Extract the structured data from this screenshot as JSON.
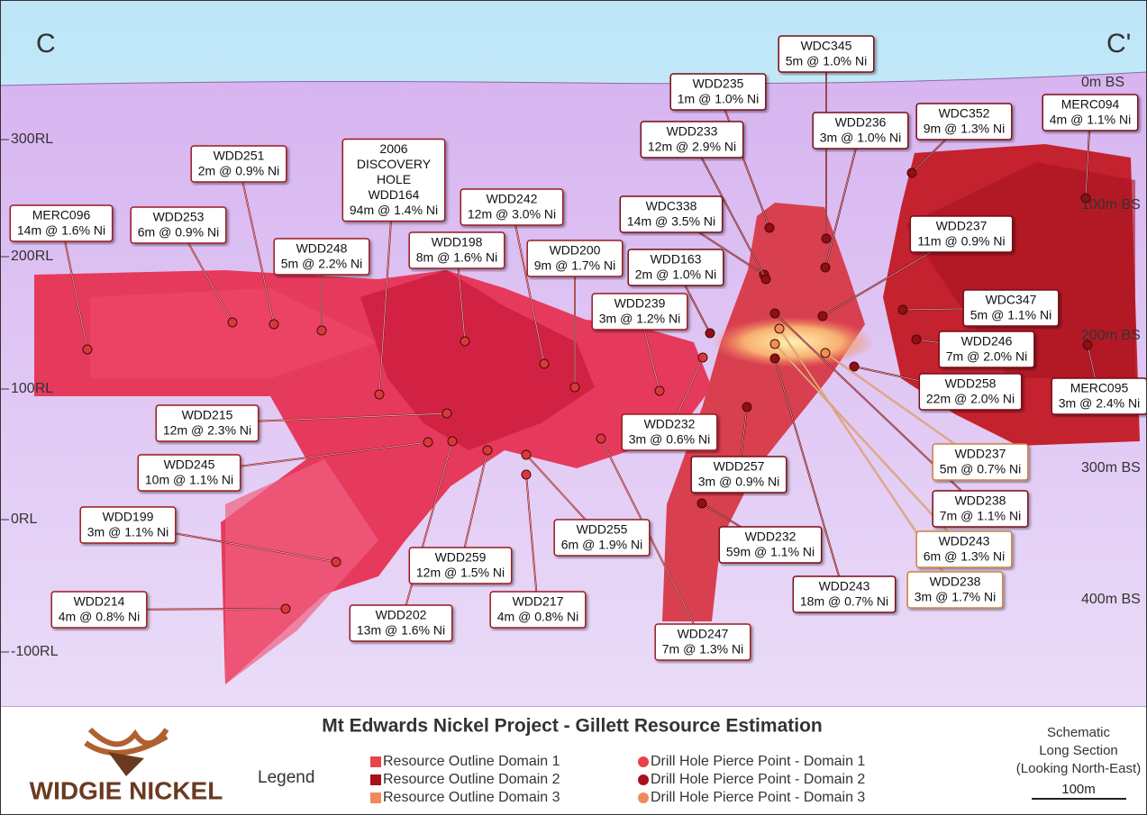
{
  "section": {
    "left": "C",
    "right": "C'"
  },
  "rl_labels": [
    "300RL",
    "200RL",
    "100RL",
    "0RL",
    "-100RL"
  ],
  "depth_labels": [
    "0m BS",
    "100m BS",
    "200m BS",
    "300m BS",
    "400m BS"
  ],
  "callouts": [
    {
      "lines": [
        "MERC096",
        "14m @ 1.6% Ni"
      ]
    },
    {
      "lines": [
        "WDD253",
        "6m @ 0.9% Ni"
      ]
    },
    {
      "lines": [
        "WDD251",
        "2m @ 0.9% Ni"
      ]
    },
    {
      "lines": [
        "WDD248",
        "5m @ 2.2% Ni"
      ]
    },
    {
      "lines": [
        "2006",
        "DISCOVERY",
        "HOLE",
        "WDD164",
        "94m @ 1.4% Ni"
      ]
    },
    {
      "lines": [
        "WDD198",
        "8m @ 1.6% Ni"
      ]
    },
    {
      "lines": [
        "WDD242",
        "12m @ 3.0% Ni"
      ]
    },
    {
      "lines": [
        "WDD200",
        "9m @ 1.7% Ni"
      ]
    },
    {
      "lines": [
        "WDD239",
        "3m @ 1.2% Ni"
      ]
    },
    {
      "lines": [
        "WDC338",
        "14m @ 3.5% Ni"
      ]
    },
    {
      "lines": [
        "WDD233",
        "12m @ 2.9% Ni"
      ]
    },
    {
      "lines": [
        "WDD235",
        "1m @ 1.0% Ni"
      ]
    },
    {
      "lines": [
        "WDC345",
        "5m @ 1.0% Ni"
      ]
    },
    {
      "lines": [
        "WDD236",
        "3m @ 1.0% Ni"
      ]
    },
    {
      "lines": [
        "WDC352",
        "9m @ 1.3% Ni"
      ]
    },
    {
      "lines": [
        "MERC094",
        "4m @ 1.1% Ni"
      ]
    },
    {
      "lines": [
        "WDD163",
        "2m @ 1.0% Ni"
      ]
    },
    {
      "lines": [
        "WDD237",
        "11m @ 0.9% Ni"
      ]
    },
    {
      "lines": [
        "WDC347",
        "5m @ 1.1% Ni"
      ]
    },
    {
      "lines": [
        "WDD246",
        "7m @ 2.0% Ni"
      ]
    },
    {
      "lines": [
        "WDD258",
        "22m @ 2.0% Ni"
      ]
    },
    {
      "lines": [
        "MERC095",
        "3m @ 2.4% Ni"
      ]
    },
    {
      "lines": [
        "WDD215",
        "12m @ 2.3% Ni"
      ]
    },
    {
      "lines": [
        "WDD245",
        "10m @ 1.1% Ni"
      ]
    },
    {
      "lines": [
        "WDD232",
        "3m @ 0.6% Ni"
      ]
    },
    {
      "lines": [
        "WDD199",
        "3m @ 1.1% Ni"
      ]
    },
    {
      "lines": [
        "WDD214",
        "4m @ 0.8% Ni"
      ]
    },
    {
      "lines": [
        "WDD202",
        "13m @ 1.6% Ni"
      ]
    },
    {
      "lines": [
        "WDD259",
        "12m @ 1.5% Ni"
      ]
    },
    {
      "lines": [
        "WDD255",
        "6m @ 1.9% Ni"
      ]
    },
    {
      "lines": [
        "WDD217",
        "4m @ 0.8% Ni"
      ]
    },
    {
      "lines": [
        "WDD247",
        "7m @ 1.3% Ni"
      ]
    },
    {
      "lines": [
        "WDD257",
        "3m @ 0.9% Ni"
      ]
    },
    {
      "lines": [
        "WDD232",
        "59m @ 1.1% Ni"
      ]
    },
    {
      "lines": [
        "WDD243",
        "18m @ 0.7% Ni"
      ]
    },
    {
      "lines": [
        "WDD237",
        "5m @ 0.7% Ni"
      ]
    },
    {
      "lines": [
        "WDD238",
        "7m @ 1.1% Ni"
      ]
    },
    {
      "lines": [
        "WDD243",
        "6m @ 1.3% Ni"
      ]
    },
    {
      "lines": [
        "WDD238",
        "3m @ 1.7% Ni"
      ]
    }
  ],
  "footer": {
    "logo": "WIDGIE NICKEL",
    "title": "Mt Edwards Nickel Project - Gillett Resource Estimation",
    "legend_title": "Legend",
    "legend": [
      "Resource Outline Domain 1",
      "Resource Outline Domain 2",
      "Resource Outline Domain 3",
      "Drill Hole Pierce Point - Domain 1",
      "Drill Hole Pierce Point - Domain 2",
      "Drill Hole Pierce Point - Domain 3"
    ],
    "note": [
      "Schematic",
      "Long Section",
      "(Looking North-East)"
    ],
    "scale": "100m"
  }
}
